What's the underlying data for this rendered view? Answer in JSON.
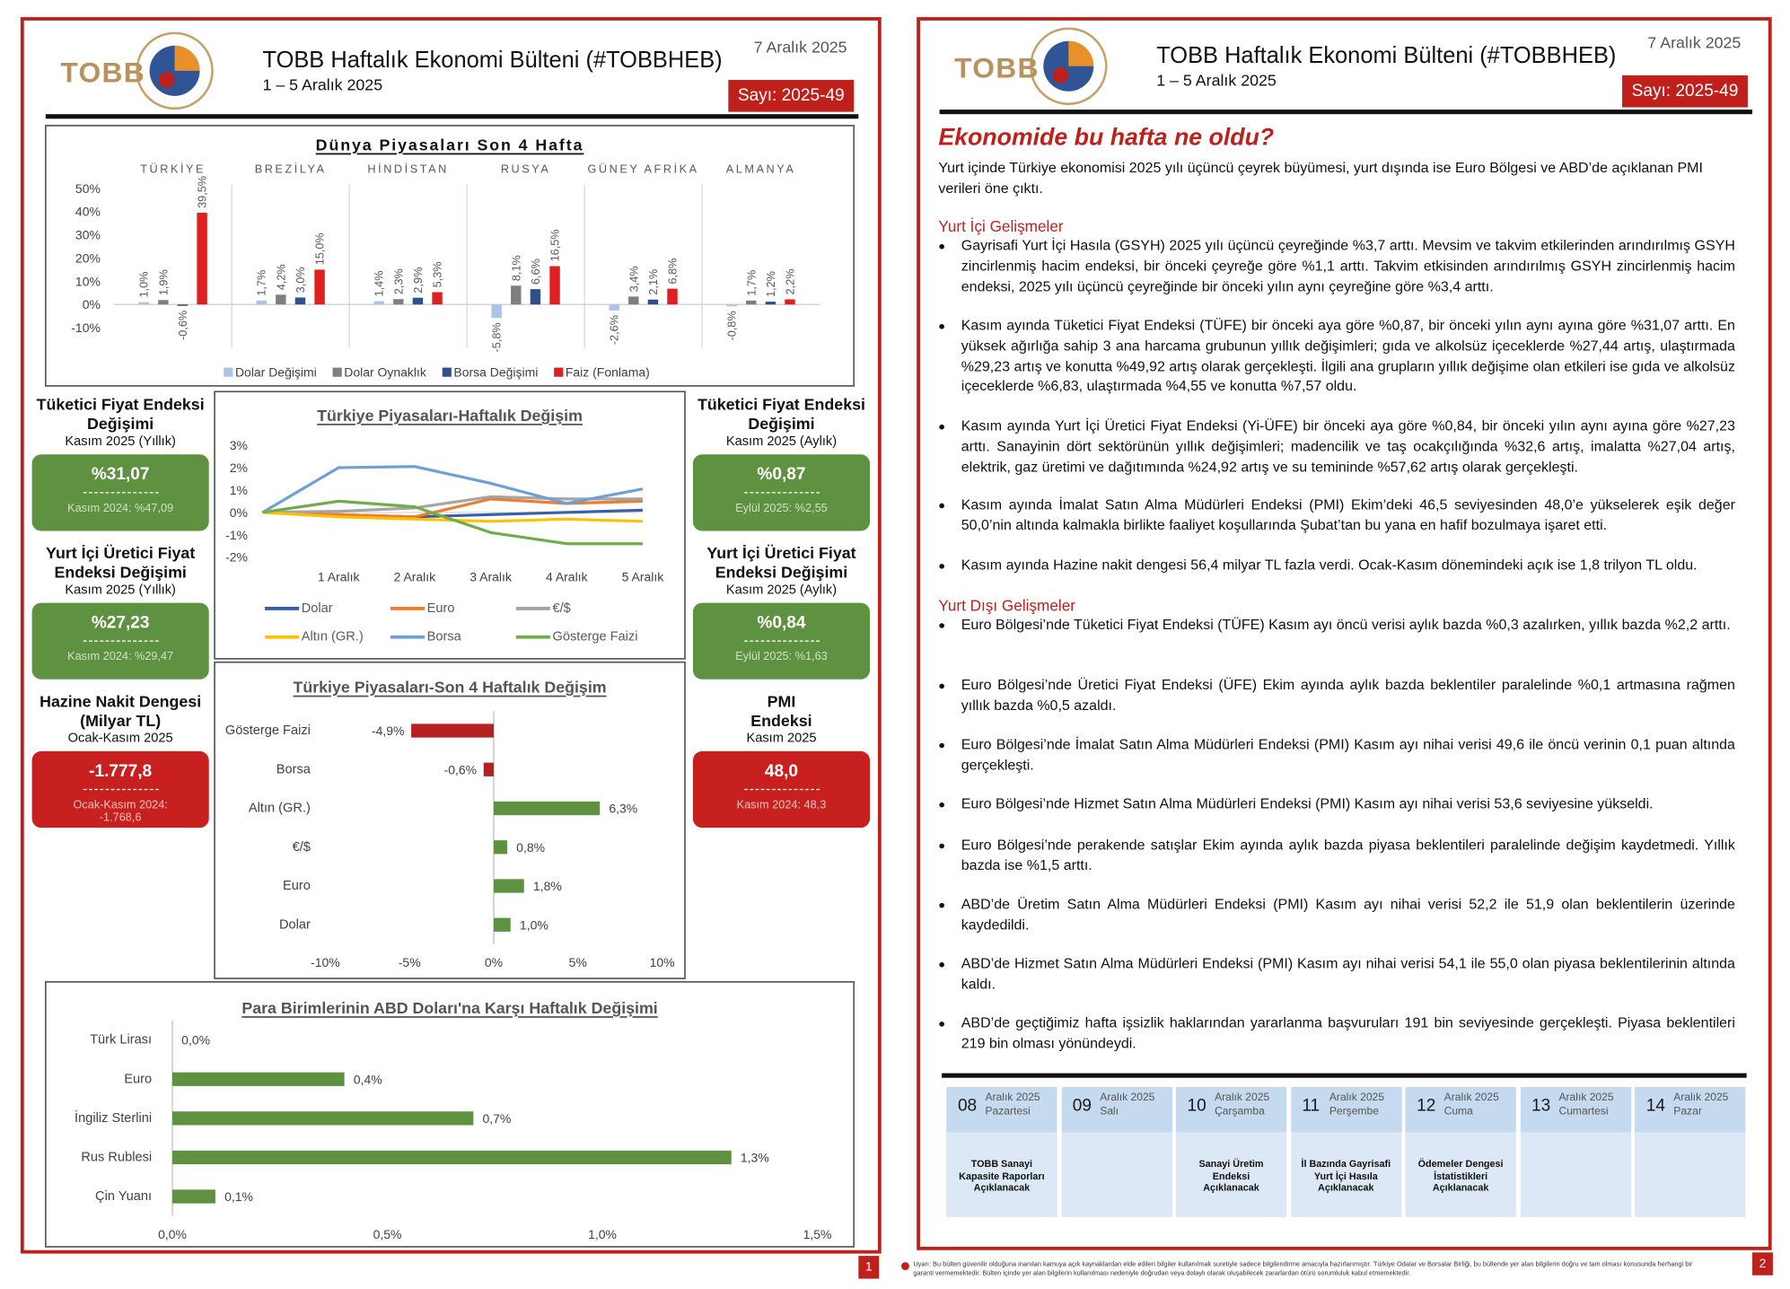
{
  "header": {
    "logo": "TOBB",
    "title": "TOBB Haftalık Ekonomi Bülteni (#TOBBHEB)",
    "period": "1 – 5 Aralık 2025",
    "date": "7 Aralık 2025",
    "issue": "Sayı: 2025-49"
  },
  "page_numbers": [
    "1",
    "2"
  ],
  "cards": [
    {
      "title": "Tüketici Fiyat Endeksi Değişimi",
      "period": "Kasım 2025 (Yıllık)",
      "value": "%31,07",
      "previous": "Kasım 2024: %47,09",
      "color": "#5e9140"
    },
    {
      "title": "Yurt İçi Üretici Fiyat Endeksi Değişimi",
      "period": "Kasım 2025 (Yıllık)",
      "value": "%27,23",
      "previous": "Kasım 2024: %29,47",
      "color": "#5e9140"
    },
    {
      "title": "Hazine Nakit Dengesi (Milyar TL)",
      "period": "Ocak-Kasım 2025",
      "value": "-1.777,8",
      "previous": "Ocak-Kasım 2024: -1.768,6",
      "color": "#c8201e"
    },
    {
      "title": "Tüketici Fiyat Endeksi Değişimi",
      "period": "Kasım 2025 (Aylık)",
      "value": "%0,87",
      "previous": "Eylül 2025: %2,55",
      "color": "#5e9140"
    },
    {
      "title": "Yurt İçi Üretici Fiyat Endeksi Değişimi",
      "period": "Kasım 2025 (Aylık)",
      "value": "%0,84",
      "previous": "Eylül 2025: %1,63",
      "color": "#5e9140"
    },
    {
      "title": "PMI Endeksi",
      "period": "Kasım 2025",
      "value": "48,0",
      "previous": "Kasım 2024: 48,3",
      "color": "#c8201e"
    }
  ],
  "chart_data": [
    {
      "type": "bar",
      "title": "Dünya Piyasaları Son 4 Hafta",
      "categories": [
        "TÜRKİYE",
        "BREZİLYA",
        "HİNDİSTAN",
        "RUSYA",
        "GÜNEY AFRİKA",
        "ALMANYA"
      ],
      "series": [
        {
          "name": "Dolar Değişimi",
          "color": "#a9c4e8",
          "values": [
            1.0,
            1.7,
            1.4,
            -5.8,
            -2.6,
            -0.8
          ],
          "value_labels": [
            "1,0%",
            "1,7%",
            "1,4%",
            "-5,8%",
            "-2,6%",
            "-0,8%"
          ]
        },
        {
          "name": "Dolar Oynaklık",
          "color": "#7f7f7f",
          "values": [
            1.9,
            4.2,
            2.3,
            8.1,
            3.4,
            1.7
          ],
          "value_labels": [
            "1,9%",
            "4,2%",
            "2,3%",
            "8,1%",
            "3,4%",
            "1,7%"
          ]
        },
        {
          "name": "Borsa Değişimi",
          "color": "#2f4f8f",
          "values": [
            -0.6,
            3.0,
            2.9,
            6.6,
            2.1,
            1.2
          ],
          "value_labels": [
            "-0,6%",
            "3,0%",
            "2,9%",
            "6,6%",
            "2,1%",
            "1,2%"
          ]
        },
        {
          "name": "Faiz (Fonlama)",
          "color": "#e02020",
          "values": [
            39.5,
            15.0,
            5.3,
            16.5,
            6.8,
            2.2
          ],
          "value_labels": [
            "39,5%",
            "15,0%",
            "5,3%",
            "16,5%",
            "6,8%",
            "2,2%"
          ]
        }
      ],
      "ylim": [
        -10,
        50
      ],
      "yticks": [
        {
          "value": -10,
          "label": "-10%"
        },
        {
          "value": 0,
          "label": "0%"
        },
        {
          "value": 10,
          "label": "10%"
        },
        {
          "value": 20,
          "label": "20%"
        },
        {
          "value": 30,
          "label": "30%"
        },
        {
          "value": 40,
          "label": "40%"
        },
        {
          "value": 50,
          "label": "50%"
        }
      ],
      "grid": false,
      "legend": "bottom"
    },
    {
      "type": "line",
      "title": "Türkiye Piyasaları-Haftalık Değişim",
      "categories": [
        null,
        "1 Aralık",
        "2 Aralık",
        "3 Aralık",
        "4 Aralık",
        "5 Aralık"
      ],
      "series": [
        {
          "name": "Dolar",
          "color": "#3a5fa8",
          "values": [
            0,
            -0.1,
            -0.2,
            -0.1,
            0,
            0.1
          ]
        },
        {
          "name": "Euro",
          "color": "#ed7d31",
          "values": [
            0,
            -0.1,
            -0.2,
            0.6,
            0.4,
            0.5
          ]
        },
        {
          "name": "€/$",
          "color": "#a5a5a5",
          "values": [
            0,
            0.05,
            0.2,
            0.7,
            0.6,
            0.6
          ]
        },
        {
          "name": "Altın (GR.)",
          "color": "#ffc000",
          "values": [
            0,
            -0.2,
            -0.3,
            -0.4,
            -0.3,
            -0.4
          ]
        },
        {
          "name": "Borsa",
          "color": "#6fa0d4",
          "values": [
            0,
            2.0,
            2.05,
            1.3,
            0.4,
            1.05
          ]
        },
        {
          "name": "Gösterge Faizi",
          "color": "#70ad47",
          "values": [
            0,
            0.5,
            0.25,
            -0.9,
            -1.4,
            -1.4
          ]
        }
      ],
      "ylim": [
        -2,
        3
      ],
      "yticks": [
        {
          "value": -2,
          "label": "-2%"
        },
        {
          "value": -1,
          "label": "-1%"
        },
        {
          "value": 0,
          "label": "0%"
        },
        {
          "value": 1,
          "label": "1%"
        },
        {
          "value": 2,
          "label": "2%"
        },
        {
          "value": 3,
          "label": "3%"
        }
      ],
      "grid": false,
      "legend": "bottom"
    },
    {
      "type": "barh",
      "title": "Türkiye Piyasaları-Son 4 Haftalık Değişim",
      "categories": [
        "Gösterge Faizi",
        "Borsa",
        "Altın (GR.)",
        "€/$",
        "Euro",
        "Dolar"
      ],
      "values": [
        -4.9,
        -0.6,
        6.3,
        0.8,
        1.8,
        1.0
      ],
      "value_labels": [
        "-4,9%",
        "-0,6%",
        "6,3%",
        "0,8%",
        "1,8%",
        "1,0%"
      ],
      "color": "#5e9140",
      "negative_color": "#b52020",
      "xlim": [
        -10,
        10
      ],
      "xticks": [
        {
          "value": -10,
          "label": "-10%"
        },
        {
          "value": -5,
          "label": "-5%"
        },
        {
          "value": 0,
          "label": "0%"
        },
        {
          "value": 5,
          "label": "5%"
        },
        {
          "value": 10,
          "label": "10%"
        }
      ]
    },
    {
      "type": "barh",
      "title": "Para Birimlerinin ABD Doları'na Karşı Haftalık Değişimi",
      "categories": [
        "Türk Lirası",
        "Euro",
        "İngiliz Sterlini",
        "Rus Rublesi",
        "Çin Yuanı"
      ],
      "values": [
        0.0,
        0.4,
        0.7,
        1.3,
        0.1
      ],
      "value_labels": [
        "0,0%",
        "0,4%",
        "0,7%",
        "1,3%",
        "0,1%"
      ],
      "color": "#5e9140",
      "xlim": [
        0,
        1.5
      ],
      "xticks": [
        {
          "value": 0,
          "label": "0,0%"
        },
        {
          "value": 0.5,
          "label": "0,5%"
        },
        {
          "value": 1,
          "label": "1,0%"
        },
        {
          "value": 1.5,
          "label": "1,5%"
        }
      ]
    }
  ],
  "news": {
    "title": "Ekonomide bu hafta ne oldu?",
    "intro": "Yurt içinde Türkiye ekonomisi 2025 yılı üçüncü çeyrek büyümesi, yurt dışında ise Euro Bölgesi ve ABD’de açıklanan PMI verileri öne çıktı.",
    "sections": [
      {
        "heading": "Yurt İçi Gelişmeler",
        "items": [
          "Gayrisafi Yurt İçi Hasıla (GSYH) 2025 yılı üçüncü çeyreğinde %3,7 arttı. Mevsim ve takvim etkilerinden arındırılmış GSYH zincirlenmiş hacim endeksi, bir önceki çeyreğe göre %1,1 arttı. Takvim etkisinden arındırılmış GSYH zincirlenmiş hacim endeksi, 2025 yılı üçüncü çeyreğinde bir önceki yılın aynı çeyreğine göre %3,4 arttı.",
          "Kasım ayında Tüketici Fiyat Endeksi (TÜFE) bir önceki aya göre %0,87, bir önceki yılın aynı ayına göre %31,07 arttı. En yüksek ağırlığa sahip 3 ana harcama grubunun yıllık değişimleri; gıda ve alkolsüz içeceklerde %27,44 artış, ulaştırmada %29,23 artış ve konutta %49,92 artış olarak gerçekleşti. İlgili ana grupların yıllık değişime olan etkileri ise gıda ve alkolsüz içeceklerde %6,83, ulaştırmada %4,55 ve konutta %7,57 oldu.",
          "Kasım ayında Yurt İçi Üretici Fiyat Endeksi (Yi-ÜFE) bir önceki aya göre %0,84, bir önceki yılın aynı ayına göre %27,23 arttı. Sanayinin dört sektörünün yıllık değişimleri; madencilik ve taş ocakçılığında %32,6 artış, imalatta %27,04 artış, elektrik, gaz üretimi ve dağıtımında %24,92 artış ve su temininde %57,62 artış olarak gerçekleşti.",
          "Kasım ayında İmalat Satın Alma Müdürleri Endeksi (PMI) Ekim’deki 46,5 seviyesinden 48,0’e yükselerek eşik değer 50,0’nin altında kalmakla birlikte faaliyet koşullarında Şubat’tan bu yana en hafif bozulmaya işaret etti.",
          "Kasım ayında Hazine nakit dengesi 56,4 milyar TL fazla verdi. Ocak-Kasım dönemindeki açık ise 1,8 trilyon TL oldu."
        ]
      },
      {
        "heading": "Yurt Dışı Gelişmeler",
        "items": [
          "Euro Bölgesi’nde Tüketici Fiyat Endeksi (TÜFE) Kasım ayı öncü verisi aylık bazda %0,3 azalırken, yıllık bazda %2,2 arttı.",
          "Euro Bölgesi’nde Üretici Fiyat Endeksi (ÜFE) Ekim ayında aylık bazda beklentiler paralelinde %0,1 artmasına rağmen yıllık bazda %0,5 azaldı.",
          "Euro Bölgesi’nde İmalat Satın Alma Müdürleri Endeksi (PMI) Kasım ayı nihai verisi 49,6 ile öncü verinin 0,1 puan altında gerçekleşti.",
          "Euro Bölgesi’nde Hizmet Satın Alma Müdürleri Endeksi (PMI) Kasım ayı nihai verisi 53,6 seviyesine yükseldi.",
          "Euro Bölgesi’nde perakende satışlar Ekim ayında aylık bazda piyasa beklentileri paralelinde değişim kaydetmedi. Yıllık bazda ise %1,5 arttı.",
          "ABD’de Üretim Satın Alma Müdürleri Endeksi (PMI) Kasım ayı nihai verisi 52,2 ile 51,9 olan beklentilerin üzerinde kaydedildi.",
          "ABD’de Hizmet Satın Alma Müdürleri Endeksi (PMI) Kasım ayı nihai verisi 54,1 ile 55,0 olan piyasa beklentilerinin altında kaldı.",
          "ABD’de geçtiğimiz hafta işsizlik haklarından yararlanma başvuruları 191 bin seviyesinde gerçekleşti. Piyasa beklentileri 219 bin olması yönündeydi."
        ]
      }
    ]
  },
  "calendar": [
    {
      "day": "08",
      "month": "Aralık 2025",
      "weekday": "Pazartesi",
      "event": "TOBB Sanayi Kapasite Raporları Açıklanacak"
    },
    {
      "day": "09",
      "month": "Aralık 2025",
      "weekday": "Salı"
    },
    {
      "day": "10",
      "month": "Aralık 2025",
      "weekday": "Çarşamba",
      "event": "Sanayi Üretim Endeksi Açıklanacak"
    },
    {
      "day": "11",
      "month": "Aralık 2025",
      "weekday": "Perşembe",
      "event": "İl Bazında Gayrisafi Yurt İçi Hasıla Açıklanacak"
    },
    {
      "day": "12",
      "month": "Aralık 2025",
      "weekday": "Cuma",
      "event": "Ödemeler Dengesi İstatistikleri Açıklanacak"
    },
    {
      "day": "13",
      "month": "Aralık 2025",
      "weekday": "Cumartesi"
    },
    {
      "day": "14",
      "month": "Aralık 2025",
      "weekday": "Pazar"
    }
  ],
  "disclaimer": "Uyarı: Bu bülten güvenilir olduğuna inanılan kamuya açık kaynaklardan elde edilen bilgiler kullanılmak suretiyle sadece bilgilendirme amacıyla hazırlanmıştır. Türkiye Odalar ve Borsalar Birliği, bu bültende yer alan bilgilerin doğru ve tam olması konusunda herhangi bir garanti vermemektedir. Bülten içinde yer alan bilgilerin kullanılması nedeniyle doğrudan veya dolaylı olarak oluşabilecek zararlardan ötürü sorumluluk kabul etmemektedir."
}
